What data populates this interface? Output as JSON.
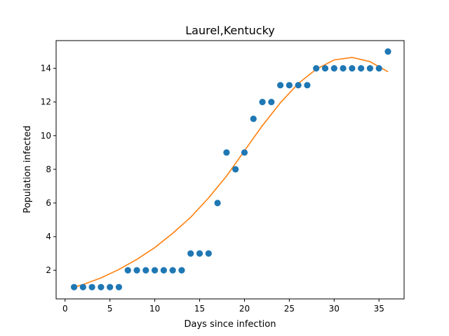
{
  "chart_data": {
    "type": "scatter",
    "title": "Laurel,Kentucky",
    "xlabel": "Days since infection",
    "ylabel": "Population infected",
    "xlim": [
      -1,
      37.8
    ],
    "ylim": [
      0.3,
      15.65
    ],
    "xticks": [
      0,
      5,
      10,
      15,
      20,
      25,
      30,
      35
    ],
    "yticks": [
      2,
      4,
      6,
      8,
      10,
      12,
      14
    ],
    "grid": false,
    "legend": "none",
    "colors": {
      "points": "#1f77b4",
      "fit": "#ff7f0e"
    },
    "series": [
      {
        "kind": "points",
        "x": [
          1,
          2,
          3,
          4,
          5,
          6,
          7,
          8,
          9,
          10,
          11,
          12,
          13,
          14,
          15,
          16,
          17,
          18,
          19,
          20,
          21,
          22,
          23,
          24,
          25,
          26,
          27,
          28,
          29,
          30,
          31,
          32,
          33,
          34,
          35,
          36
        ],
        "y": [
          1,
          1,
          1,
          1,
          1,
          1,
          2,
          2,
          2,
          2,
          2,
          2,
          2,
          3,
          3,
          3,
          6,
          9,
          8,
          9,
          11,
          12,
          12,
          13,
          13,
          13,
          13,
          14,
          14,
          14,
          14,
          14,
          14,
          14,
          14,
          15
        ]
      },
      {
        "kind": "fit-line",
        "x": [
          1,
          2,
          4,
          6,
          8,
          10,
          12,
          14,
          16,
          18,
          20,
          22,
          24,
          26,
          28,
          30,
          32,
          34,
          36
        ],
        "y": [
          1.0,
          1.15,
          1.55,
          2.05,
          2.65,
          3.35,
          4.2,
          5.15,
          6.3,
          7.6,
          9.1,
          10.6,
          11.95,
          13.1,
          13.95,
          14.5,
          14.65,
          14.4,
          13.8
        ]
      }
    ]
  }
}
